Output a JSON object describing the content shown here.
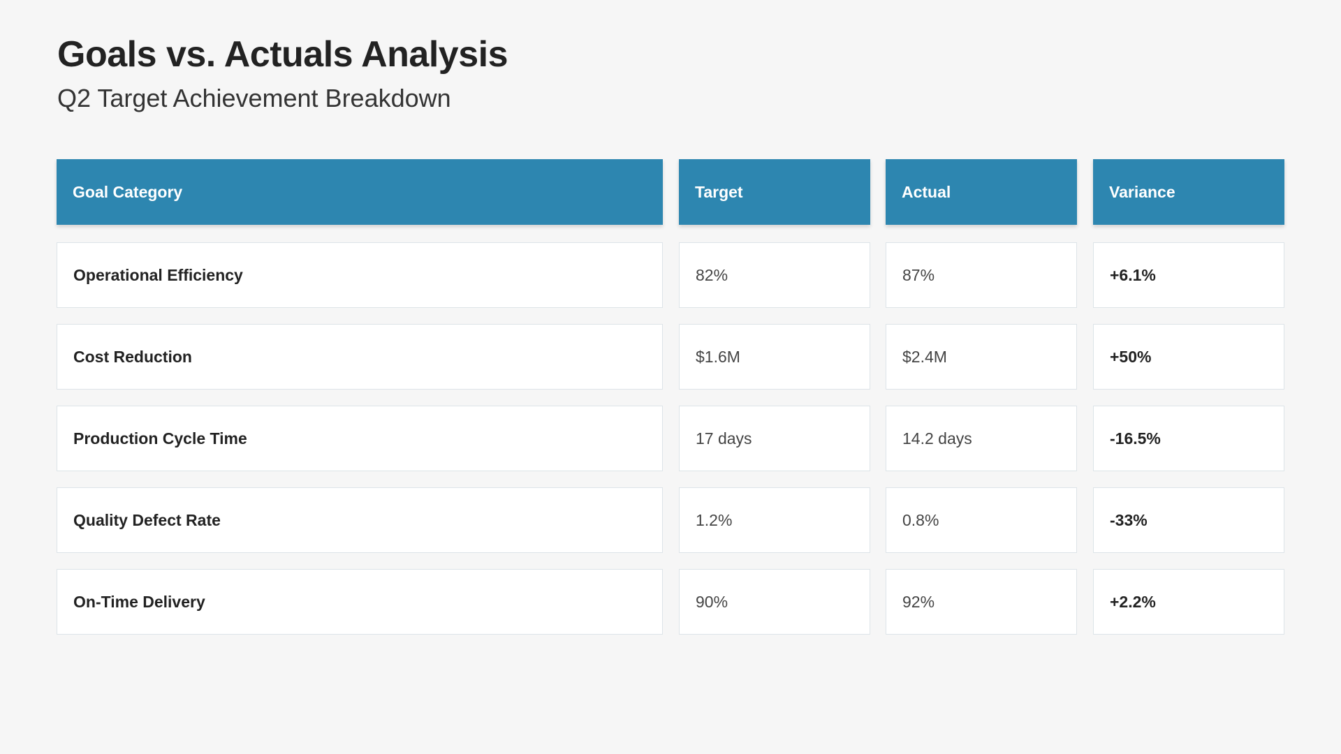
{
  "title": "Goals vs. Actuals Analysis",
  "subtitle": "Q2 Target Achievement Breakdown",
  "table": {
    "headers": [
      "Goal Category",
      "Target",
      "Actual",
      "Variance"
    ],
    "rows": [
      [
        "Operational Efficiency",
        "82%",
        "87%",
        "+6.1%"
      ],
      [
        "Cost Reduction",
        "$1.6M",
        "$2.4M",
        "+50%"
      ],
      [
        "Production Cycle Time",
        "17 days",
        "14.2 days",
        "-16.5%"
      ],
      [
        "Quality Defect Rate",
        "1.2%",
        "0.8%",
        "-33%"
      ],
      [
        "On-Time Delivery",
        "90%",
        "92%",
        "+2.2%"
      ]
    ]
  },
  "colors": {
    "header": "#2d86b0",
    "background": "#f6f6f6"
  }
}
